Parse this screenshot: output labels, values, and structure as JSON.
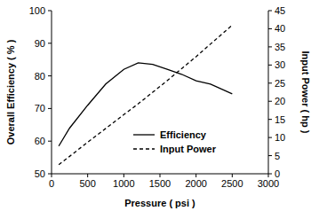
{
  "chart_data": {
    "type": "line",
    "x_label": "Pressure ( psi )",
    "y_label": "Overall Efficiency ( % )",
    "y2_label": "Input Power ( hp )",
    "x": [
      100,
      250,
      500,
      750,
      1000,
      1200,
      1400,
      1600,
      1800,
      2000,
      2200,
      2500
    ],
    "series": [
      {
        "name": "Efficiency",
        "color": "#000000",
        "line_style": "solid",
        "values": [
          58.5,
          64,
          71,
          77.5,
          82,
          84,
          83.5,
          82,
          80.5,
          78.5,
          77.5,
          74.5
        ]
      },
      {
        "name": "Input Power",
        "color": "#000000",
        "line_style": "dashed",
        "axis": "y2",
        "values": [
          2.5,
          4.8,
          8.7,
          12.5,
          16.3,
          19.3,
          22.5,
          25.7,
          29,
          32.3,
          35.8,
          41
        ]
      }
    ],
    "xlim": [
      0,
      3000
    ],
    "xticks": [
      0,
      500,
      1000,
      1500,
      2000,
      2500,
      3000
    ],
    "ylim": [
      50,
      100
    ],
    "yticks": [
      50,
      60,
      70,
      80,
      90,
      100
    ],
    "y2lim": [
      0,
      45
    ],
    "y2ticks": [
      0,
      5,
      10,
      15,
      20,
      25,
      30,
      35,
      40,
      45
    ],
    "grid": false,
    "legend": "lower center"
  }
}
